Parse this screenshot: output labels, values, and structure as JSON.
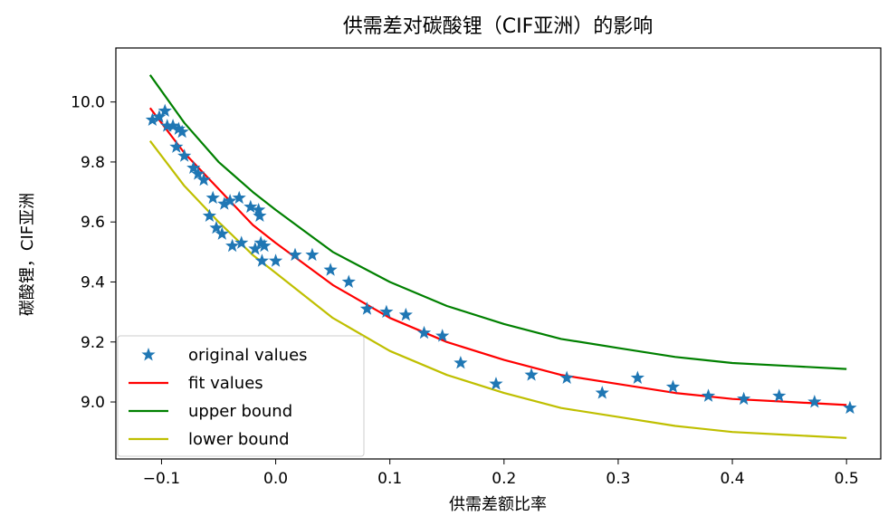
{
  "chart_data": {
    "type": "line",
    "title": "供需差对碳酸锂（CIF亚洲）的影响",
    "xlabel": "供需差额比率",
    "ylabel": "碳酸锂，CIF亚洲",
    "xlim": [
      -0.14,
      0.53
    ],
    "ylim": [
      8.81,
      10.18
    ],
    "xticks": [
      "−0.1",
      "0.0",
      "0.1",
      "0.2",
      "0.3",
      "0.4",
      "0.5"
    ],
    "xtick_values": [
      -0.1,
      0.0,
      0.1,
      0.2,
      0.3,
      0.4,
      0.5
    ],
    "yticks": [
      "9.0",
      "9.2",
      "9.4",
      "9.6",
      "9.8",
      "10.0"
    ],
    "ytick_values": [
      9.0,
      9.2,
      9.4,
      9.6,
      9.8,
      10.0
    ],
    "grid": false,
    "legend_position": "lower-left",
    "series": [
      {
        "name": "original values",
        "kind": "scatter",
        "marker": "star",
        "color": "#1f77b4",
        "points": [
          [
            -0.108,
            9.94
          ],
          [
            -0.102,
            9.95
          ],
          [
            -0.097,
            9.97
          ],
          [
            -0.095,
            9.92
          ],
          [
            -0.09,
            9.92
          ],
          [
            -0.085,
            9.91
          ],
          [
            -0.082,
            9.9
          ],
          [
            -0.087,
            9.85
          ],
          [
            -0.08,
            9.82
          ],
          [
            -0.072,
            9.78
          ],
          [
            -0.068,
            9.76
          ],
          [
            -0.063,
            9.74
          ],
          [
            -0.055,
            9.68
          ],
          [
            -0.045,
            9.66
          ],
          [
            -0.04,
            9.67
          ],
          [
            -0.032,
            9.68
          ],
          [
            -0.022,
            9.65
          ],
          [
            -0.015,
            9.64
          ],
          [
            -0.014,
            9.62
          ],
          [
            -0.058,
            9.62
          ],
          [
            -0.052,
            9.58
          ],
          [
            -0.047,
            9.56
          ],
          [
            -0.038,
            9.52
          ],
          [
            -0.03,
            9.53
          ],
          [
            -0.018,
            9.51
          ],
          [
            -0.013,
            9.53
          ],
          [
            -0.01,
            9.52
          ],
          [
            -0.012,
            9.47
          ],
          [
            0.0,
            9.47
          ],
          [
            0.017,
            9.49
          ],
          [
            0.032,
            9.49
          ],
          [
            0.048,
            9.44
          ],
          [
            0.064,
            9.4
          ],
          [
            0.08,
            9.31
          ],
          [
            0.097,
            9.3
          ],
          [
            0.114,
            9.29
          ],
          [
            0.13,
            9.23
          ],
          [
            0.146,
            9.22
          ],
          [
            0.162,
            9.13
          ],
          [
            0.193,
            9.06
          ],
          [
            0.224,
            9.09
          ],
          [
            0.255,
            9.08
          ],
          [
            0.286,
            9.03
          ],
          [
            0.317,
            9.08
          ],
          [
            0.348,
            9.05
          ],
          [
            0.379,
            9.02
          ],
          [
            0.41,
            9.01
          ],
          [
            0.441,
            9.02
          ],
          [
            0.472,
            9.0
          ],
          [
            0.503,
            8.98
          ]
        ]
      },
      {
        "name": "fit values",
        "kind": "line",
        "color": "#ff0000",
        "x": [
          -0.11,
          -0.08,
          -0.05,
          -0.02,
          0.0,
          0.05,
          0.1,
          0.15,
          0.2,
          0.25,
          0.3,
          0.35,
          0.4,
          0.45,
          0.5
        ],
        "y": [
          9.98,
          9.83,
          9.71,
          9.59,
          9.53,
          9.39,
          9.28,
          9.2,
          9.14,
          9.09,
          9.06,
          9.03,
          9.01,
          9.0,
          8.99
        ]
      },
      {
        "name": "upper bound",
        "kind": "line",
        "color": "#008000",
        "x": [
          -0.11,
          -0.08,
          -0.05,
          -0.02,
          0.0,
          0.05,
          0.1,
          0.15,
          0.2,
          0.25,
          0.3,
          0.35,
          0.4,
          0.45,
          0.5
        ],
        "y": [
          10.09,
          9.93,
          9.8,
          9.7,
          9.64,
          9.5,
          9.4,
          9.32,
          9.26,
          9.21,
          9.18,
          9.15,
          9.13,
          9.12,
          9.11
        ]
      },
      {
        "name": "lower bound",
        "kind": "line",
        "color": "#bfbf00",
        "x": [
          -0.11,
          -0.08,
          -0.05,
          -0.02,
          0.0,
          0.05,
          0.1,
          0.15,
          0.2,
          0.25,
          0.3,
          0.35,
          0.4,
          0.45,
          0.5
        ],
        "y": [
          9.87,
          9.72,
          9.6,
          9.49,
          9.43,
          9.28,
          9.17,
          9.09,
          9.03,
          8.98,
          8.95,
          8.92,
          8.9,
          8.89,
          8.88
        ]
      }
    ]
  }
}
